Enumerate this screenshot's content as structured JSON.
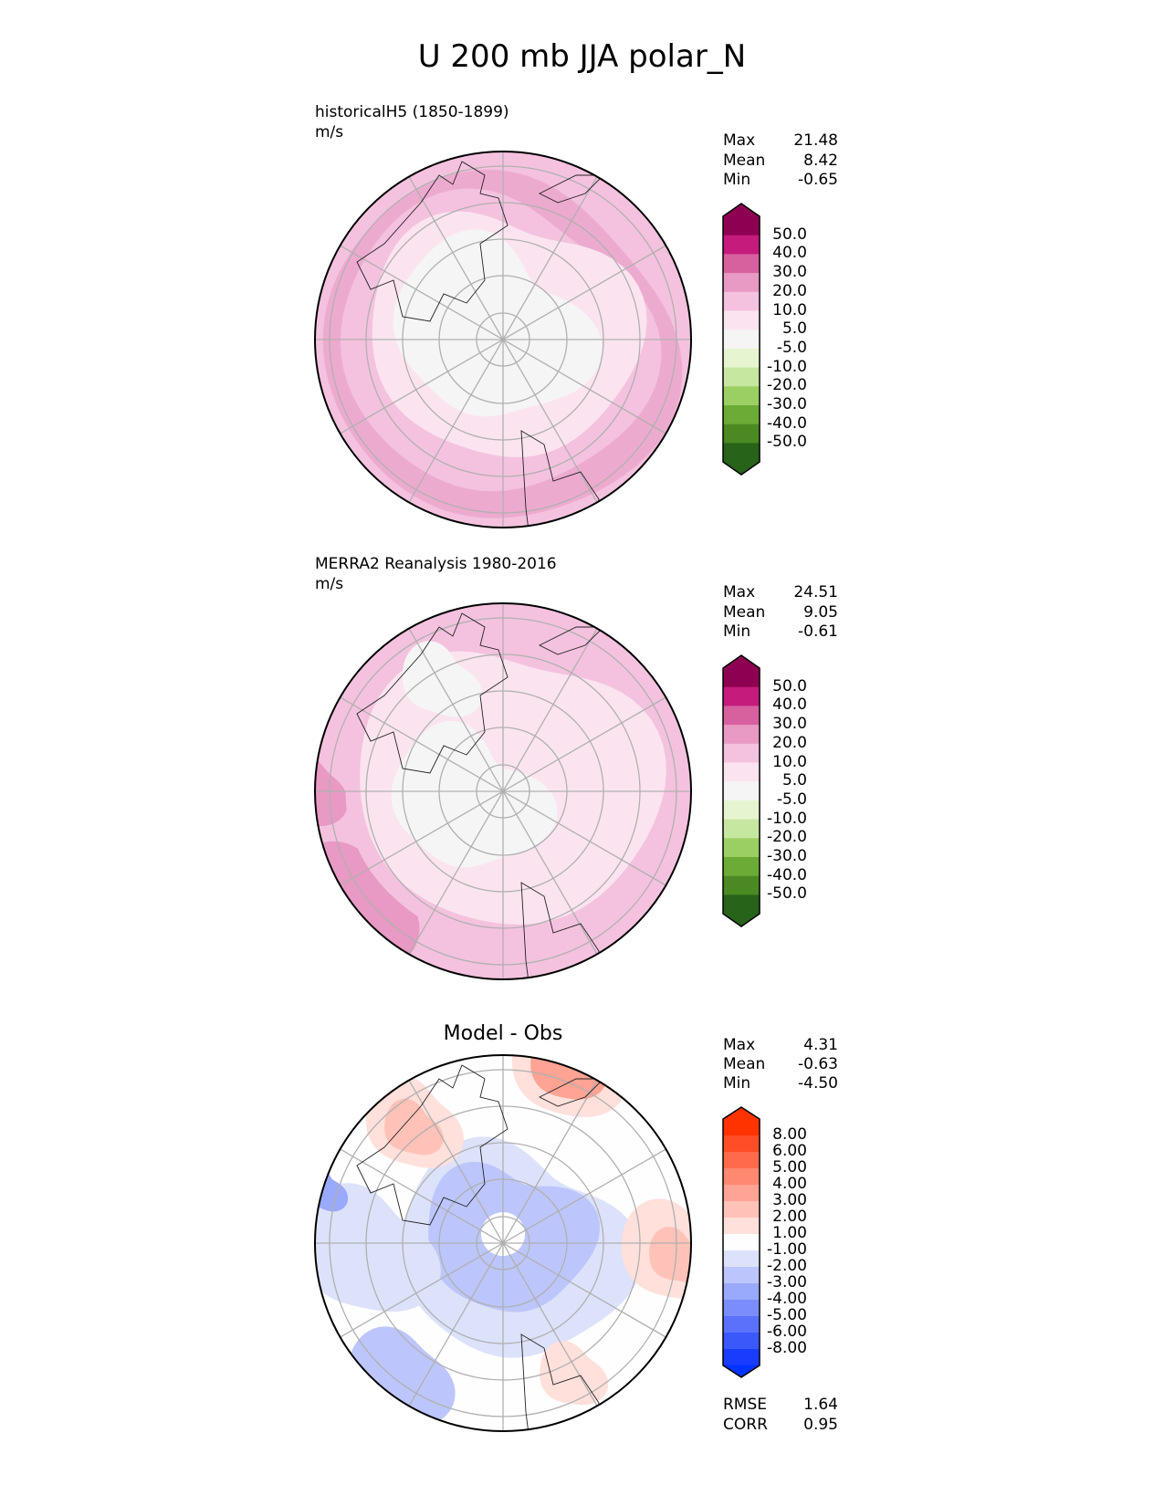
{
  "chart_data": [
    {
      "type": "heatmap",
      "projection": "polar stereographic, north",
      "suptitle": "U 200 mb JJA polar_N",
      "title": "historicalH5 (1850-1899)",
      "units": "m/s",
      "stats": {
        "max_label": "Max",
        "max": "21.48",
        "mean_label": "Mean",
        "mean": "8.42",
        "min_label": "Min",
        "min": "-0.65"
      },
      "colorbar": {
        "labels": [
          "50.0",
          "40.0",
          "30.0",
          "20.0",
          "10.0",
          "5.0",
          "-5.0",
          "-10.0",
          "-20.0",
          "-30.0",
          "-40.0",
          "-50.0"
        ],
        "colors": [
          "#8e0152",
          "#c51b7d",
          "#d7609f",
          "#e899c4",
          "#f4c2de",
          "#fbe4ef",
          "#f5f5f5",
          "#e6f5d0",
          "#c6e7a0",
          "#9ccf63",
          "#6dab37",
          "#4b8a23",
          "#276419"
        ]
      }
    },
    {
      "type": "heatmap",
      "projection": "polar stereographic, north",
      "title": "MERRA2 Reanalysis 1980-2016",
      "units": "m/s",
      "stats": {
        "max_label": "Max",
        "max": "24.51",
        "mean_label": "Mean",
        "mean": "9.05",
        "min_label": "Min",
        "min": "-0.61"
      },
      "colorbar": {
        "labels": [
          "50.0",
          "40.0",
          "30.0",
          "20.0",
          "10.0",
          "5.0",
          "-5.0",
          "-10.0",
          "-20.0",
          "-30.0",
          "-40.0",
          "-50.0"
        ],
        "colors": [
          "#8e0152",
          "#c51b7d",
          "#d7609f",
          "#e899c4",
          "#f4c2de",
          "#fbe4ef",
          "#f5f5f5",
          "#e6f5d0",
          "#c6e7a0",
          "#9ccf63",
          "#6dab37",
          "#4b8a23",
          "#276419"
        ]
      }
    },
    {
      "type": "heatmap",
      "projection": "polar stereographic, north",
      "title": "Model - Obs",
      "stats": {
        "max_label": "Max",
        "max": "4.31",
        "mean_label": "Mean",
        "mean": "-0.63",
        "min_label": "Min",
        "min": "-4.50"
      },
      "metrics": {
        "rmse_label": "RMSE",
        "rmse": "1.64",
        "corr_label": "CORR",
        "corr": "0.95"
      },
      "colorbar": {
        "labels": [
          "8.00",
          "6.00",
          "5.00",
          "4.00",
          "3.00",
          "2.00",
          "1.00",
          "-1.00",
          "-2.00",
          "-3.00",
          "-4.00",
          "-5.00",
          "-6.00",
          "-8.00"
        ],
        "colors": [
          "#ff3300",
          "#ff4d26",
          "#ff6a4a",
          "#ff8870",
          "#ffa394",
          "#ffc2b8",
          "#ffe0db",
          "#fefefe",
          "#dde2fb",
          "#bcc6fc",
          "#99a9fb",
          "#7a8dfb",
          "#5a72fb",
          "#3b58fb",
          "#1a3cfc",
          "#0033ff"
        ]
      }
    }
  ]
}
